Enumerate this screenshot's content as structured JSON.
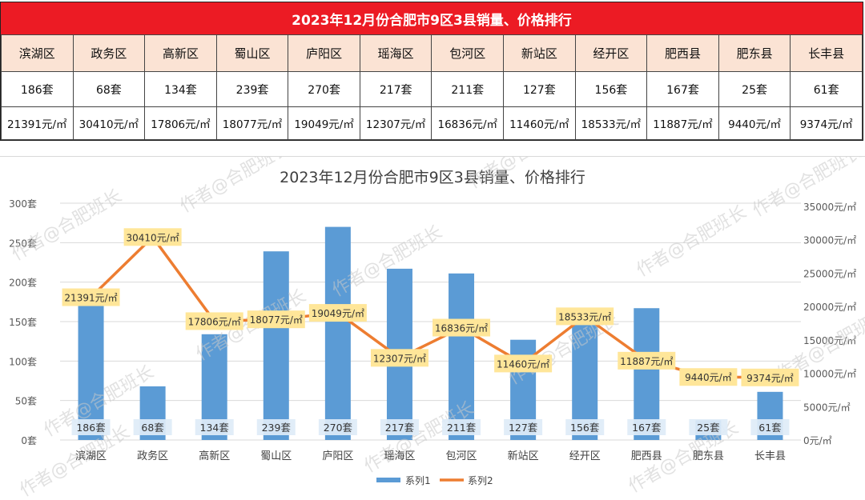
{
  "table": {
    "title": "2023年12月份合肥市9区3县销量、价格排行",
    "districts": [
      "滨湖区",
      "政务区",
      "高新区",
      "蜀山区",
      "庐阳区",
      "瑶海区",
      "包河区",
      "新站区",
      "经开区",
      "肥西县",
      "肥东县",
      "长丰县"
    ],
    "sales": [
      "186套",
      "68套",
      "134套",
      "239套",
      "270套",
      "217套",
      "211套",
      "127套",
      "156套",
      "167套",
      "25套",
      "61套"
    ],
    "prices": [
      "21391元/㎡",
      "30410元/㎡",
      "17806元/㎡",
      "18077元/㎡",
      "19049元/㎡",
      "12307元/㎡",
      "16836元/㎡",
      "11460元/㎡",
      "18533元/㎡",
      "11887元/㎡",
      "9440元/㎡",
      "9374元/㎡"
    ]
  },
  "chart_data": {
    "type": "bar",
    "title": "2023年12月份合肥市9区3县销量、价格排行",
    "categories": [
      "滨湖区",
      "政务区",
      "高新区",
      "蜀山区",
      "庐阳区",
      "瑶海区",
      "包河区",
      "新站区",
      "经开区",
      "肥西县",
      "肥东县",
      "长丰县"
    ],
    "series": [
      {
        "name": "系列1",
        "type": "bar",
        "axis": "left",
        "values": [
          186,
          68,
          134,
          239,
          270,
          217,
          211,
          127,
          156,
          167,
          25,
          61
        ],
        "color": "#5b9bd5",
        "labels": [
          "186套",
          "68套",
          "134套",
          "239套",
          "270套",
          "217套",
          "211套",
          "127套",
          "156套",
          "167套",
          "25套",
          "61套"
        ]
      },
      {
        "name": "系列2",
        "type": "line",
        "axis": "right",
        "values": [
          21391,
          30410,
          17806,
          18077,
          19049,
          12307,
          16836,
          11460,
          18533,
          11887,
          9440,
          9374
        ],
        "color": "#ed7d31",
        "labels": [
          "21391元/㎡",
          "30410元/㎡",
          "17806元/㎡",
          "18077元/㎡",
          "19049元/㎡",
          "12307元/㎡",
          "16836元/㎡",
          "11460元/㎡",
          "18533元/㎡",
          "11887元/㎡",
          "9440元/㎡",
          "9374元/㎡"
        ]
      }
    ],
    "y_left": {
      "range": [
        0,
        300
      ],
      "ticks": [
        "0套",
        "50套",
        "100套",
        "150套",
        "200套",
        "250套",
        "300套"
      ],
      "values": [
        0,
        50,
        100,
        150,
        200,
        250,
        300
      ]
    },
    "y_right": {
      "range": [
        0,
        35000
      ],
      "ticks": [
        "0元/㎡",
        "5000元/㎡",
        "10000元/㎡",
        "15000元/㎡",
        "20000元/㎡",
        "25000元/㎡",
        "30000元/㎡",
        "35000元/㎡"
      ],
      "values": [
        0,
        5000,
        10000,
        15000,
        20000,
        25000,
        30000,
        35000
      ]
    },
    "grid": true,
    "legend": "bottom"
  },
  "watermark": "作者@合肥班长",
  "colors": {
    "title_bg": "#ec1b24",
    "header_bg": "#fbe3d4",
    "bar": "#5b9bd5",
    "line": "#ed7d31",
    "price_label_bg": "#ffe699",
    "sales_label_bg": "#deebf7"
  }
}
